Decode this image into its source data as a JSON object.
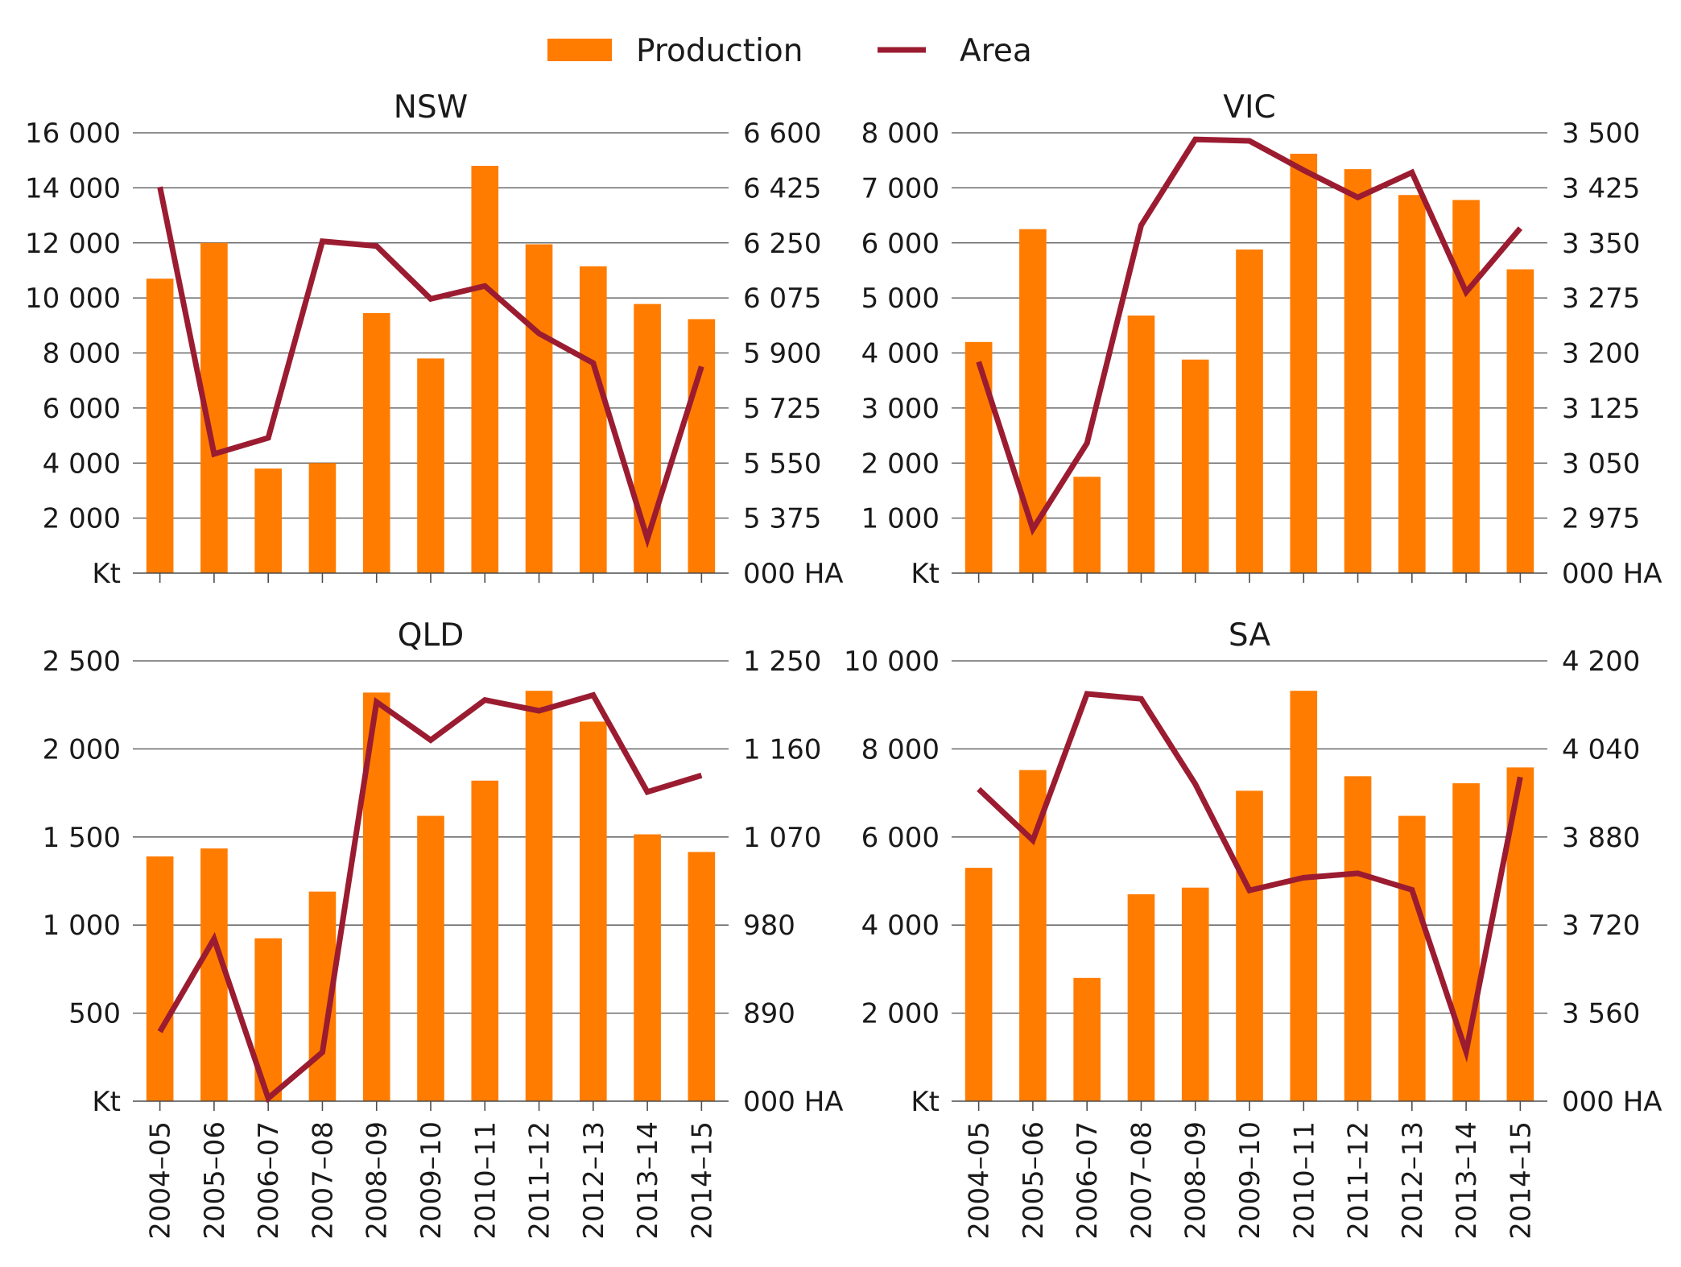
{
  "colors": {
    "bar": "#ff7c00",
    "line": "#9b1c31",
    "grid": "#4d4d4d"
  },
  "legend": [
    {
      "label": "Production",
      "kind": "bar"
    },
    {
      "label": "Area",
      "kind": "line"
    }
  ],
  "chart_data": [
    {
      "type": "bar",
      "title": "NSW",
      "categories": [
        "2004–05",
        "2005–06",
        "2006–07",
        "2007–08",
        "2008–09",
        "2009–10",
        "2010–11",
        "2011–12",
        "2012–13",
        "2013–14",
        "2014–15"
      ],
      "series": [
        {
          "name": "Production",
          "axis": "left",
          "type": "bar",
          "values": [
            10700,
            12000,
            3800,
            4000,
            9450,
            7800,
            14800,
            11950,
            11150,
            9780,
            9230
          ]
        },
        {
          "name": "Area",
          "axis": "right",
          "type": "line",
          "values": [
            6428,
            5579,
            5630,
            6255,
            6240,
            6072,
            6113,
            5962,
            5868,
            5309,
            5857
          ]
        }
      ],
      "y_left": {
        "min": 0,
        "max": 16000,
        "ticks": [
          "Kt",
          "2 000",
          "4 000",
          "6 000",
          "8 000",
          "10 000",
          "12 000",
          "14 000",
          "16 000"
        ]
      },
      "y_right": {
        "min": 5200,
        "max": 6600,
        "ticks": [
          "000 HA",
          "5 375",
          "5 550",
          "5 725",
          "5 900",
          "6 075",
          "6 250",
          "6 425",
          "6 600"
        ]
      },
      "grid": true
    },
    {
      "type": "bar",
      "title": "VIC",
      "categories": [
        "2004–05",
        "2005–06",
        "2006–07",
        "2007–08",
        "2008–09",
        "2009–10",
        "2010–11",
        "2011–12",
        "2012–13",
        "2013–14",
        "2014–15"
      ],
      "series": [
        {
          "name": "Production",
          "axis": "left",
          "type": "bar",
          "values": [
            4200,
            6250,
            1750,
            4680,
            3880,
            5880,
            7620,
            7340,
            6870,
            6780,
            5520
          ]
        },
        {
          "name": "Area",
          "axis": "right",
          "type": "line",
          "values": [
            3188,
            2960,
            3077,
            3374,
            3491,
            3489,
            3449,
            3412,
            3446,
            3283,
            3370
          ]
        }
      ],
      "y_left": {
        "min": 0,
        "max": 8000,
        "ticks": [
          "Kt",
          "1 000",
          "2 000",
          "3 000",
          "4 000",
          "5 000",
          "6 000",
          "7 000",
          "8 000"
        ]
      },
      "y_right": {
        "min": 2900,
        "max": 3500,
        "ticks": [
          "000 HA",
          "2 975",
          "3 050",
          "3 125",
          "3 200",
          "3 275",
          "3 350",
          "3 425",
          "3 500"
        ]
      },
      "grid": true
    },
    {
      "type": "bar",
      "title": "QLD",
      "categories": [
        "2004–05",
        "2005–06",
        "2006–07",
        "2007–08",
        "2008–09",
        "2009–10",
        "2010–11",
        "2011–12",
        "2012–13",
        "2013–14",
        "2014–15"
      ],
      "series": [
        {
          "name": "Production",
          "axis": "left",
          "type": "bar",
          "values": [
            1390,
            1435,
            925,
            1190,
            2320,
            1620,
            1820,
            2330,
            2155,
            1515,
            1415
          ]
        },
        {
          "name": "Area",
          "axis": "right",
          "type": "line",
          "values": [
            871,
            966,
            803,
            850,
            1208,
            1169,
            1210,
            1199,
            1215,
            1116,
            1133
          ]
        }
      ],
      "y_left": {
        "min": 0,
        "max": 2500,
        "ticks": [
          "Kt",
          "500",
          "1 000",
          "1 500",
          "2 000",
          "2 500"
        ]
      },
      "y_right": {
        "min": 800,
        "max": 1250,
        "ticks": [
          "000 HA",
          "890",
          "980",
          "1 070",
          "1 160",
          "1 250"
        ]
      },
      "grid": true
    },
    {
      "type": "bar",
      "title": "SA",
      "categories": [
        "2004–05",
        "2005–06",
        "2006–07",
        "2007–08",
        "2008–09",
        "2009–10",
        "2010–11",
        "2011–12",
        "2012–13",
        "2013–14",
        "2014–15"
      ],
      "series": [
        {
          "name": "Production",
          "axis": "left",
          "type": "bar",
          "values": [
            5300,
            7520,
            2800,
            4700,
            4850,
            7050,
            9320,
            7380,
            6480,
            7220,
            7580
          ]
        },
        {
          "name": "Area",
          "axis": "right",
          "type": "line",
          "values": [
            3967,
            3874,
            4140,
            4131,
            3976,
            3783,
            3806,
            3814,
            3784,
            3490,
            3989
          ]
        }
      ],
      "y_left": {
        "min": 0,
        "max": 10000,
        "ticks": [
          "Kt",
          "2 000",
          "4 000",
          "6 000",
          "8 000",
          "10 000"
        ]
      },
      "y_right": {
        "min": 3400,
        "max": 4200,
        "ticks": [
          "000 HA",
          "3 560",
          "3 720",
          "3 880",
          "4 040",
          "4 200"
        ]
      },
      "grid": true
    }
  ]
}
